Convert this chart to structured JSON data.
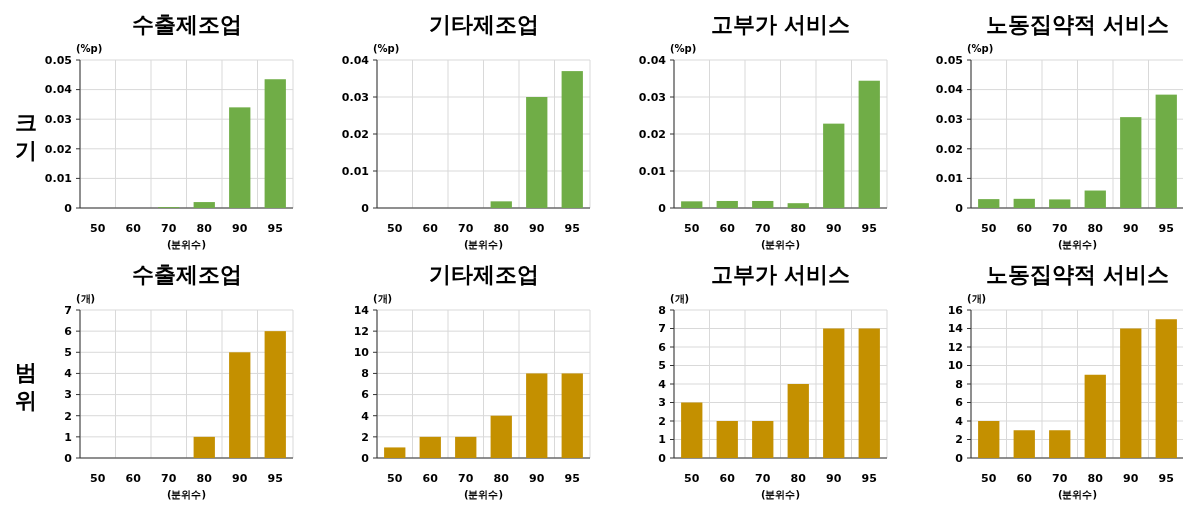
{
  "chart_data": [
    {
      "type": "bar",
      "title": "수출제조업",
      "annotations": [
        "크기"
      ],
      "ylabel": "(%p)",
      "xlabel": "(분위수)",
      "categories": [
        "50",
        "60",
        "70",
        "80",
        "90",
        "95"
      ],
      "values": [
        0,
        0,
        0.0003,
        0.002,
        0.034,
        0.0435
      ],
      "color": "#70ad47",
      "ylim": [
        0,
        0.05
      ],
      "yticks": [
        0,
        0.01,
        0.02,
        0.03,
        0.04,
        0.05
      ],
      "grid": true
    },
    {
      "type": "bar",
      "title": "기타제조업",
      "ylabel": "(%p)",
      "xlabel": "(분위수)",
      "categories": [
        "50",
        "60",
        "70",
        "80",
        "90",
        "95"
      ],
      "values": [
        0,
        0,
        0,
        0.0018,
        0.03,
        0.037
      ],
      "color": "#70ad47",
      "ylim": [
        0,
        0.04
      ],
      "yticks": [
        0,
        0.01,
        0.02,
        0.03,
        0.04
      ],
      "grid": true
    },
    {
      "type": "bar",
      "title": "고부가 서비스",
      "ylabel": "(%p)",
      "xlabel": "(분위수)",
      "categories": [
        "50",
        "60",
        "70",
        "80",
        "90",
        "95"
      ],
      "values": [
        0.0018,
        0.0019,
        0.0019,
        0.0013,
        0.0228,
        0.0344
      ],
      "color": "#70ad47",
      "ylim": [
        0,
        0.04
      ],
      "yticks": [
        0,
        0.01,
        0.02,
        0.03,
        0.04
      ],
      "grid": true
    },
    {
      "type": "bar",
      "title": "노동집약적 서비스",
      "ylabel": "(%p)",
      "xlabel": "(분위수)",
      "categories": [
        "50",
        "60",
        "70",
        "80",
        "90",
        "95"
      ],
      "values": [
        0.003,
        0.0031,
        0.0029,
        0.0059,
        0.0307,
        0.0383
      ],
      "color": "#70ad47",
      "ylim": [
        0,
        0.05
      ],
      "yticks": [
        0,
        0.01,
        0.02,
        0.03,
        0.04,
        0.05
      ],
      "grid": true
    },
    {
      "type": "bar",
      "title": "수출제조업",
      "annotations": [
        "범위"
      ],
      "ylabel": "(개)",
      "xlabel": "(분위수)",
      "categories": [
        "50",
        "60",
        "70",
        "80",
        "90",
        "95"
      ],
      "values": [
        0,
        0,
        0,
        1,
        5,
        6
      ],
      "color": "#c49000",
      "ylim": [
        0,
        7
      ],
      "yticks": [
        0,
        1,
        2,
        3,
        4,
        5,
        6,
        7
      ],
      "grid": true
    },
    {
      "type": "bar",
      "title": "기타제조업",
      "ylabel": "(개)",
      "xlabel": "(분위수)",
      "categories": [
        "50",
        "60",
        "70",
        "80",
        "90",
        "95"
      ],
      "values": [
        1,
        2,
        2,
        4,
        8,
        8
      ],
      "color": "#c49000",
      "ylim": [
        0,
        14
      ],
      "yticks": [
        0,
        2,
        4,
        6,
        8,
        10,
        12,
        14
      ],
      "grid": true
    },
    {
      "type": "bar",
      "title": "고부가 서비스",
      "ylabel": "(개)",
      "xlabel": "(분위수)",
      "categories": [
        "50",
        "60",
        "70",
        "80",
        "90",
        "95"
      ],
      "values": [
        3,
        2,
        2,
        4,
        7,
        7
      ],
      "color": "#c49000",
      "ylim": [
        0,
        8
      ],
      "yticks": [
        0,
        1,
        2,
        3,
        4,
        5,
        6,
        7,
        8
      ],
      "grid": true
    },
    {
      "type": "bar",
      "title": "노동집약적 서비스",
      "ylabel": "(개)",
      "xlabel": "(분위수)",
      "categories": [
        "50",
        "60",
        "70",
        "80",
        "90",
        "95"
      ],
      "values": [
        4,
        3,
        3,
        9,
        14,
        15
      ],
      "color": "#c49000",
      "ylim": [
        0,
        16
      ],
      "yticks": [
        0,
        2,
        4,
        6,
        8,
        10,
        12,
        14,
        16
      ],
      "grid": true
    }
  ]
}
